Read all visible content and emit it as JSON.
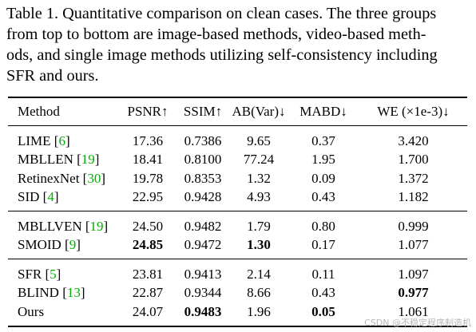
{
  "caption": {
    "lines": [
      "Table 1. Quantitative comparison on clean cases. The three groups",
      "from top to bottom are image-based methods, video-based meth-",
      "ods, and single image methods utilizing self-consistency including",
      "SFR and ours."
    ]
  },
  "table": {
    "header": [
      "Method",
      "PSNR↑",
      "SSIM↑",
      "AB(Var)↓",
      "MABD↓",
      "WE (×1e-3)↓"
    ],
    "groups": [
      {
        "rows": [
          {
            "cells": [
              "LIME [6]",
              "17.36",
              "0.7386",
              "9.65",
              "0.37",
              "3.420"
            ],
            "bold": []
          },
          {
            "cells": [
              "MBLLEN [19]",
              "18.41",
              "0.8100",
              "77.24",
              "1.95",
              "1.700"
            ],
            "bold": []
          },
          {
            "cells": [
              "RetinexNet [30]",
              "19.78",
              "0.8353",
              "1.32",
              "0.09",
              "1.372"
            ],
            "bold": []
          },
          {
            "cells": [
              "SID [4]",
              "22.95",
              "0.9428",
              "4.93",
              "0.43",
              "1.182"
            ],
            "bold": []
          }
        ]
      },
      {
        "rows": [
          {
            "cells": [
              "MBLLVEN [19]",
              "24.50",
              "0.9482",
              "1.79",
              "0.80",
              "0.999"
            ],
            "bold": []
          },
          {
            "cells": [
              "SMOID [9]",
              "24.85",
              "0.9472",
              "1.30",
              "0.17",
              "1.077"
            ],
            "bold": [
              1,
              3
            ]
          }
        ]
      },
      {
        "rows": [
          {
            "cells": [
              "SFR [5]",
              "23.81",
              "0.9413",
              "2.14",
              "0.11",
              "1.097"
            ],
            "bold": []
          },
          {
            "cells": [
              "BLIND [13]",
              "22.87",
              "0.9344",
              "8.66",
              "0.43",
              "0.977"
            ],
            "bold": [
              5
            ]
          },
          {
            "cells": [
              "Ours",
              "24.07",
              "0.9483",
              "1.96",
              "0.05",
              "1.061"
            ],
            "bold": [
              2,
              4
            ]
          }
        ]
      }
    ]
  },
  "watermark": "CSDN @不稳定程序制造机"
}
